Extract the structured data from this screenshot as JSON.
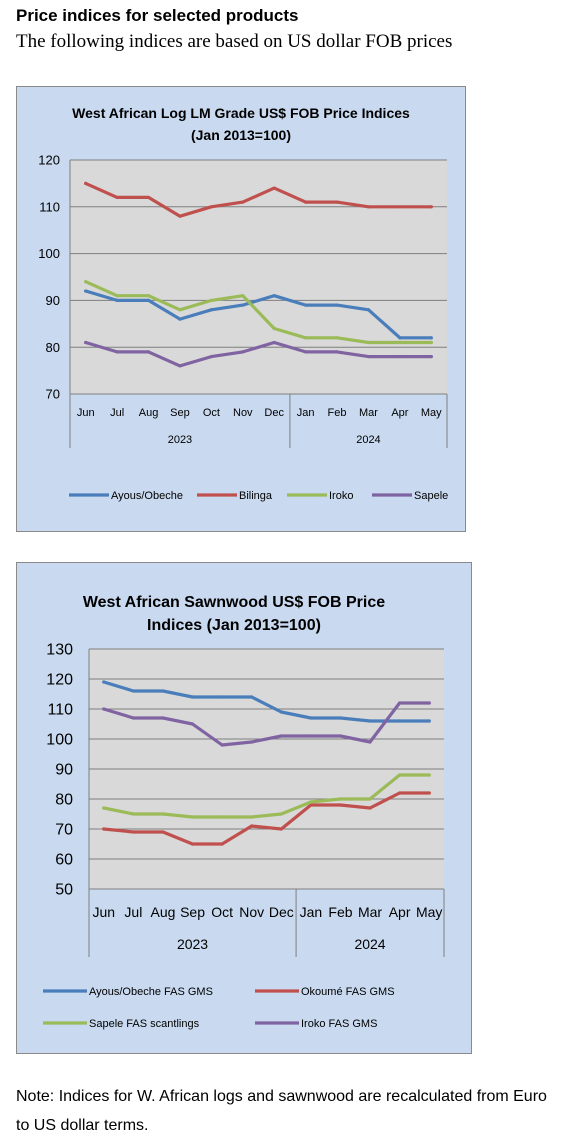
{
  "page": {
    "heading": "Price indices for selected products",
    "subheading": "The following indices are based on US dollar FOB prices",
    "note": "Note: Indices for W. African logs and sawnwood are recalculated from Euro to US dollar terms."
  },
  "chart_data": [
    {
      "type": "line",
      "title_line1": "West African Log LM Grade US$ FOB Price Indices",
      "title_line2": "(Jan 2013=100)",
      "categories": [
        "Jun",
        "Jul",
        "Aug",
        "Sep",
        "Oct",
        "Nov",
        "Dec",
        "Jan",
        "Feb",
        "Mar",
        "Apr",
        "May"
      ],
      "years": [
        {
          "label": "2023",
          "from": 0,
          "to": 6
        },
        {
          "label": "2024",
          "from": 7,
          "to": 11
        }
      ],
      "ylim": [
        70,
        120
      ],
      "yticks": [
        70,
        80,
        90,
        100,
        110,
        120
      ],
      "grid": true,
      "legend_position": "bottom",
      "series": [
        {
          "name": "Ayous/Obeche",
          "color": "#4a7ebb",
          "values": [
            92,
            90,
            90,
            86,
            88,
            89,
            91,
            89,
            89,
            88,
            82,
            82
          ]
        },
        {
          "name": "Bilinga",
          "color": "#c0504d",
          "values": [
            115,
            112,
            112,
            108,
            110,
            111,
            114,
            111,
            111,
            110,
            110,
            110
          ]
        },
        {
          "name": "Iroko",
          "color": "#9bbb59",
          "values": [
            94,
            91,
            91,
            88,
            90,
            91,
            84,
            82,
            82,
            81,
            81,
            81
          ]
        },
        {
          "name": "Sapele",
          "color": "#8064a2",
          "values": [
            81,
            79,
            79,
            76,
            78,
            79,
            81,
            79,
            79,
            78,
            78,
            78
          ]
        }
      ]
    },
    {
      "type": "line",
      "title_line1": "West African Sawnwood US$ FOB Price",
      "title_line2": "Indices (Jan 2013=100)",
      "categories": [
        "Jun",
        "Jul",
        "Aug",
        "Sep",
        "Oct",
        "Nov",
        "Dec",
        "Jan",
        "Feb",
        "Mar",
        "Apr",
        "May"
      ],
      "years": [
        {
          "label": "2023",
          "from": 0,
          "to": 6
        },
        {
          "label": "2024",
          "from": 7,
          "to": 11
        }
      ],
      "ylim": [
        50,
        130
      ],
      "yticks": [
        50,
        60,
        70,
        80,
        90,
        100,
        110,
        120,
        130
      ],
      "grid": true,
      "legend_position": "bottom",
      "series": [
        {
          "name": "Ayous/Obeche  FAS GMS",
          "color": "#4a7ebb",
          "values": [
            119,
            116,
            116,
            114,
            114,
            114,
            109,
            107,
            107,
            106,
            106,
            106
          ]
        },
        {
          "name": "Okoumé  FAS GMS",
          "color": "#c0504d",
          "values": [
            70,
            69,
            69,
            65,
            65,
            71,
            70,
            78,
            78,
            77,
            82,
            82
          ]
        },
        {
          "name": "Sapele FAS scantlings",
          "color": "#9bbb59",
          "values": [
            77,
            75,
            75,
            74,
            74,
            74,
            75,
            79,
            80,
            80,
            88,
            88
          ]
        },
        {
          "name": "Iroko FAS GMS",
          "color": "#8064a2",
          "values": [
            110,
            107,
            107,
            105,
            98,
            99,
            101,
            101,
            101,
            99,
            112,
            112
          ]
        }
      ]
    }
  ]
}
